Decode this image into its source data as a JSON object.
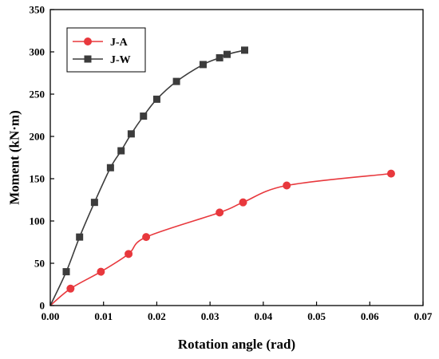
{
  "chart_data": {
    "type": "line",
    "xlabel": "Rotation angle (rad)",
    "ylabel": "Moment (kN·m)",
    "xlim": [
      0,
      0.07
    ],
    "ylim": [
      0,
      350
    ],
    "xticks": [
      "0.00",
      "0.01",
      "0.02",
      "0.03",
      "0.04",
      "0.05",
      "0.06",
      "0.07"
    ],
    "yticks": [
      "0",
      "50",
      "100",
      "150",
      "200",
      "250",
      "300",
      "350"
    ],
    "legend_position": "top-left",
    "grid": false,
    "series": [
      {
        "name": "J-A",
        "color": "#e8383d",
        "marker": "circle",
        "points": [
          [
            0,
            0
          ],
          [
            0.0038,
            20
          ],
          [
            0.0095,
            40
          ],
          [
            0.0147,
            61
          ],
          [
            0.018,
            81
          ],
          [
            0.0318,
            110
          ],
          [
            0.0362,
            122
          ],
          [
            0.0444,
            142
          ],
          [
            0.064,
            156
          ]
        ]
      },
      {
        "name": "J-W",
        "color": "#3c3c3c",
        "marker": "square",
        "points": [
          [
            0,
            0
          ],
          [
            0.003,
            40
          ],
          [
            0.0055,
            81
          ],
          [
            0.0083,
            122
          ],
          [
            0.0113,
            163
          ],
          [
            0.0133,
            183
          ],
          [
            0.0152,
            203
          ],
          [
            0.0175,
            224
          ],
          [
            0.02,
            244
          ],
          [
            0.0237,
            265
          ],
          [
            0.0287,
            285
          ],
          [
            0.0318,
            293
          ],
          [
            0.0332,
            297
          ],
          [
            0.0365,
            302
          ]
        ]
      }
    ]
  }
}
